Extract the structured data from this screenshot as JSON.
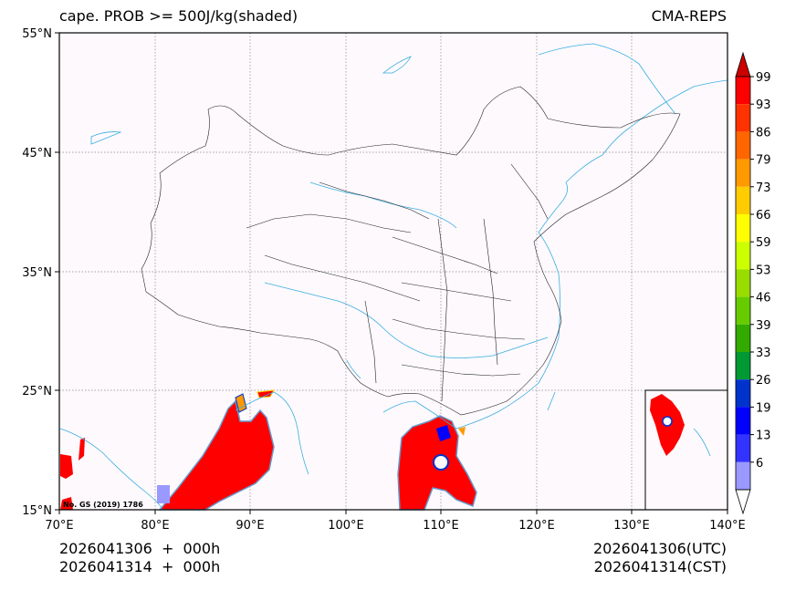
{
  "title_left": "cape. PROB >= 500J/kg(shaded)",
  "title_right": "CMA-REPS",
  "footer_left": [
    "2026041306  +  000h",
    "2026041314  +  000h"
  ],
  "footer_right": [
    "2026041306(UTC)",
    "2026041314(CST)"
  ],
  "credit": "No. GS (2019) 1786",
  "lat_labels": [
    "55°N",
    "45°N",
    "35°N",
    "25°N",
    "15°N"
  ],
  "lon_labels": [
    "70°E",
    "80°E",
    "90°E",
    "100°E",
    "110°E",
    "120°E",
    "130°E",
    "140°E"
  ],
  "colorbar": {
    "ticks": [
      "99",
      "93",
      "86",
      "79",
      "73",
      "66",
      "59",
      "53",
      "46",
      "39",
      "33",
      "26",
      "19",
      "13",
      "6"
    ],
    "colors": [
      "#ff0000",
      "#ff3300",
      "#ff6600",
      "#ff9900",
      "#ffcc00",
      "#ffff00",
      "#ccff00",
      "#99dd00",
      "#66cc00",
      "#33aa00",
      "#009933",
      "#0033cc",
      "#0000ff",
      "#3333ff",
      "#9999ff"
    ]
  },
  "colors": {
    "background": "#fdf9fd",
    "coast": "#3aaee0",
    "border": "#222222",
    "grid": "#888888",
    "shade": "#ff0000"
  }
}
